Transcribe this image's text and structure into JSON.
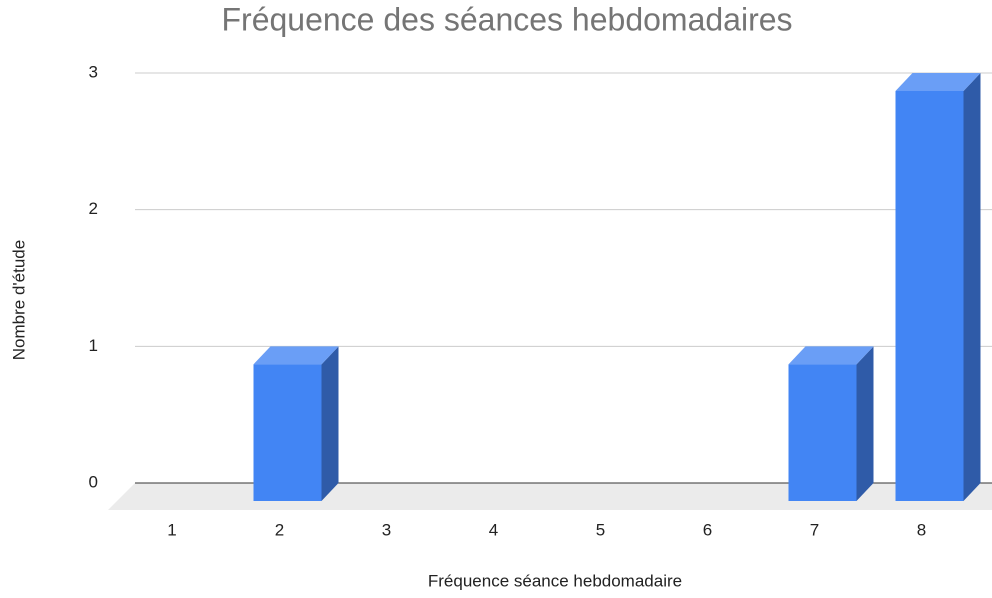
{
  "chart_data": {
    "type": "bar3d",
    "title": "Fréquence des séances hebdomadaires",
    "x_label": "Fréquence séance hebdomadaire",
    "y_label": "Nombre d'étude",
    "categories": [
      "1",
      "2",
      "3",
      "4",
      "5",
      "6",
      "7",
      "8"
    ],
    "values": [
      0,
      1,
      0,
      0,
      0,
      0,
      1,
      3
    ],
    "color": "#4285f4",
    "ylim": [
      0,
      3
    ],
    "yticks": [
      0,
      1,
      2,
      3
    ],
    "grid": true
  }
}
